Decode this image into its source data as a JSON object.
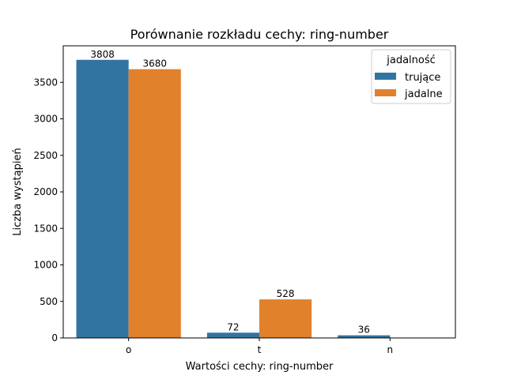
{
  "chart_data": {
    "type": "bar",
    "title": "Porównanie rozkładu cechy: ring-number",
    "xlabel": "Wartości cechy: ring-number",
    "ylabel": "Liczba wystąpień",
    "categories": [
      "o",
      "t",
      "n"
    ],
    "series": [
      {
        "name": "trujące",
        "values": [
          3808,
          72,
          36
        ],
        "color": "#3274a1"
      },
      {
        "name": "jadalne",
        "values": [
          3680,
          528,
          0
        ],
        "color": "#e1812c"
      }
    ],
    "data_labels": [
      [
        "3808",
        "72",
        "36"
      ],
      [
        "3680",
        "528",
        ""
      ]
    ],
    "yticks": [
      0,
      500,
      1000,
      1500,
      2000,
      2500,
      3000,
      3500
    ],
    "ylim": [
      0,
      4000
    ],
    "legend": {
      "title": "jadalność",
      "placement": "top-right"
    },
    "grid": false
  }
}
